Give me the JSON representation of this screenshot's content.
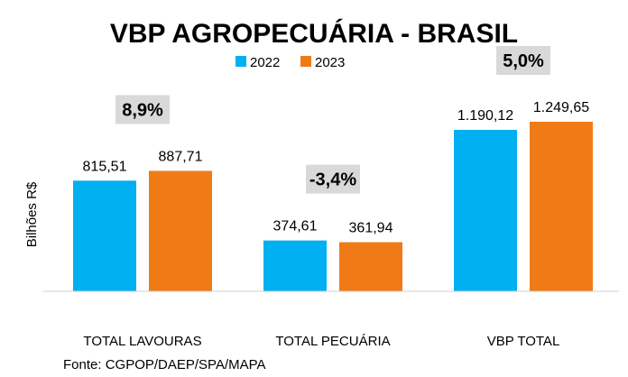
{
  "chart_data": {
    "type": "bar",
    "title": "VBP AGROPECUÁRIA - BRASIL",
    "ylabel": "Bilhões R$",
    "xlabel": "",
    "categories": [
      "TOTAL LAVOURAS",
      "TOTAL PECUÁRIA",
      "VBP TOTAL"
    ],
    "series": [
      {
        "name": "2022",
        "color": "#00B0F0",
        "values": [
          815.51,
          374.61,
          1190.12
        ],
        "labels": [
          "815,51",
          "374,61",
          "1.190,12"
        ]
      },
      {
        "name": "2023",
        "color": "#F07A16",
        "values": [
          887.71,
          361.94,
          1249.65
        ],
        "labels": [
          "887,71",
          "361,94",
          "1.249,65"
        ]
      }
    ],
    "annotations": [
      "8,9%",
      "-3,4%",
      "5,0%"
    ],
    "annotation_bg": "#D9D9D9",
    "ylim": [
      0,
      1500
    ],
    "grid": false,
    "legend": "top"
  },
  "source": "Fonte: CGPOP/DAEP/SPA/MAPA"
}
